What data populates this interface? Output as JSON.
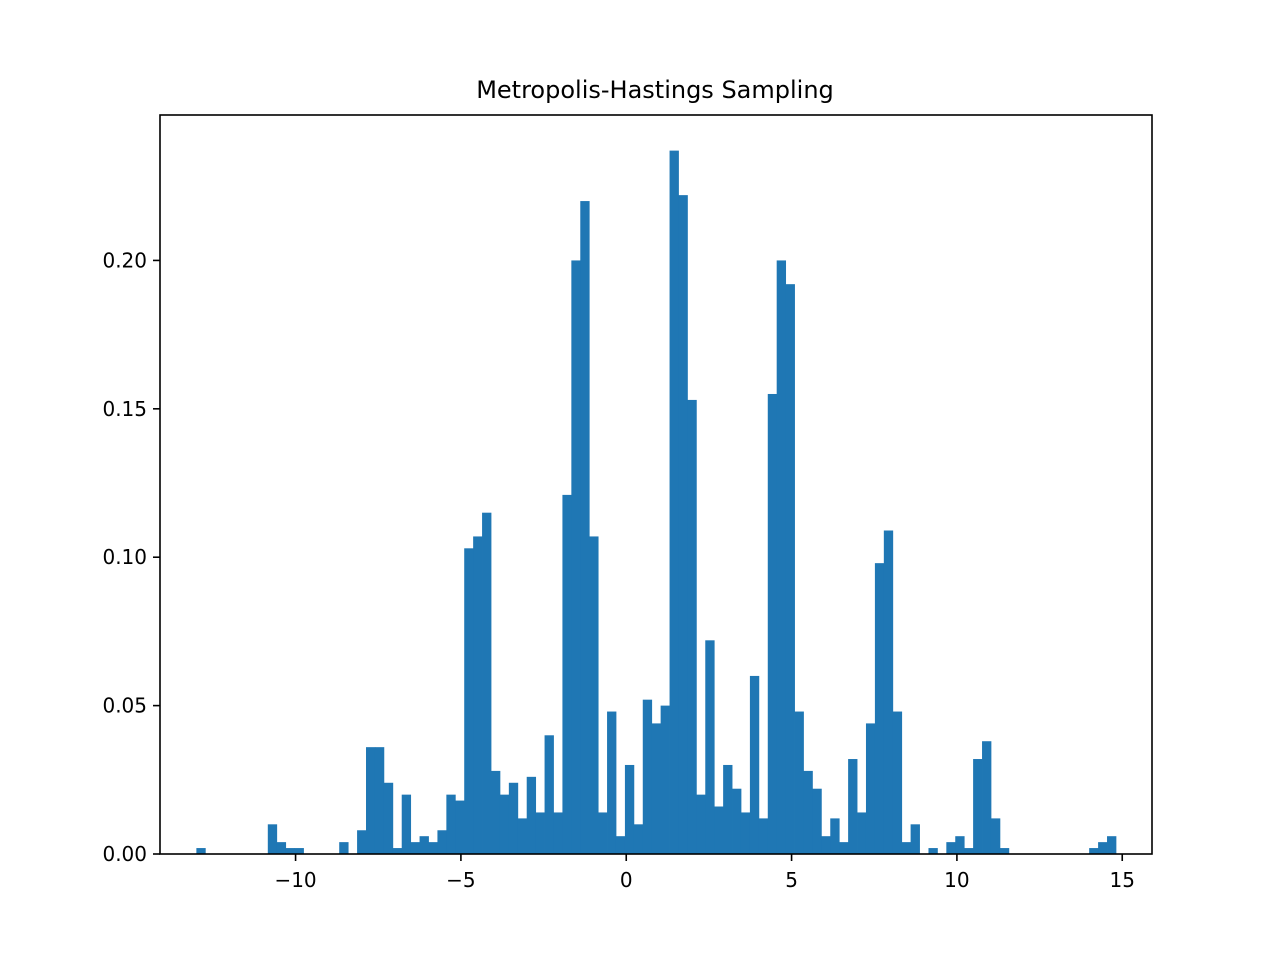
{
  "chart_data": {
    "type": "bar",
    "title": "Metropolis-Hastings Sampling",
    "xlabel": "",
    "ylabel": "",
    "xlim": [
      -14.1,
      15.9
    ],
    "ylim": [
      0,
      0.249
    ],
    "bin_width": 0.27,
    "bin_start": -13.0,
    "grid": false,
    "bar_color": "#1f77b4",
    "xticks": [
      -10,
      -5,
      0,
      5,
      10,
      15
    ],
    "xtick_labels": [
      "−10",
      "−5",
      "0",
      "5",
      "10",
      "15"
    ],
    "yticks": [
      0,
      0.05,
      0.1,
      0.15,
      0.2
    ],
    "ytick_labels": [
      "0.00",
      "0.05",
      "0.10",
      "0.15",
      "0.20"
    ],
    "values": [
      0.002,
      0,
      0,
      0,
      0,
      0,
      0,
      0,
      0.01,
      0.004,
      0.002,
      0.002,
      0,
      0,
      0,
      0,
      0.004,
      0,
      0.008,
      0.036,
      0.036,
      0.024,
      0.002,
      0.02,
      0.004,
      0.006,
      0.004,
      0.008,
      0.02,
      0.018,
      0.103,
      0.107,
      0.115,
      0.028,
      0.02,
      0.024,
      0.012,
      0.026,
      0.014,
      0.04,
      0.014,
      0.121,
      0.2,
      0.22,
      0.107,
      0.014,
      0.048,
      0.006,
      0.03,
      0.01,
      0.052,
      0.044,
      0.05,
      0.237,
      0.222,
      0.153,
      0.02,
      0.072,
      0.016,
      0.03,
      0.022,
      0.014,
      0.06,
      0.012,
      0.155,
      0.2,
      0.192,
      0.048,
      0.028,
      0.022,
      0.006,
      0.012,
      0.004,
      0.032,
      0.014,
      0.044,
      0.098,
      0.109,
      0.048,
      0.004,
      0.01,
      0,
      0.002,
      0,
      0.004,
      0.006,
      0.002,
      0.032,
      0.038,
      0.012,
      0.002,
      0,
      0,
      0,
      0,
      0,
      0,
      0,
      0,
      0,
      0.002,
      0.004,
      0.006
    ]
  }
}
